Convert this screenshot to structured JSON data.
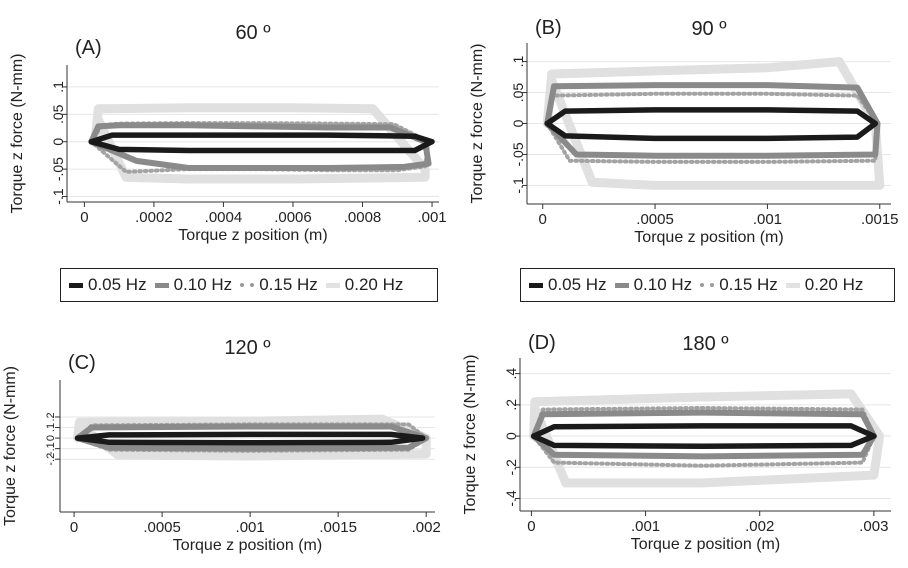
{
  "legend": {
    "items": [
      {
        "label": "0.05 Hz",
        "color": "#1a1a1a",
        "style": "solid"
      },
      {
        "label": "0.10 Hz",
        "color": "#8a8a8a",
        "style": "solid"
      },
      {
        "label": "0.15 Hz",
        "color": "#a6a6a6",
        "style": "dotted"
      },
      {
        "label": "0.20 Hz",
        "color": "#e2e2e2",
        "style": "solid"
      }
    ]
  },
  "chart_data": [
    {
      "type": "line",
      "panel_label": "(A)",
      "title": "60 º",
      "xlabel": "Torque z position (m)",
      "ylabel": "Torque z force (N-mm)",
      "xlim": [
        -5e-05,
        0.00102
      ],
      "ylim": [
        -0.11,
        0.14
      ],
      "xticks": [
        0,
        0.0002,
        0.0004,
        0.0006,
        0.0008,
        0.001
      ],
      "xtick_labels": [
        "0",
        ".0002",
        ".0004",
        ".0006",
        ".0008",
        ".001"
      ],
      "yticks": [
        -0.1,
        -0.05,
        0,
        0.05,
        0.1
      ],
      "ytick_labels": [
        "-.1",
        "-.05",
        "0",
        ".05",
        ".1"
      ],
      "grid": true,
      "series": [
        {
          "name": "0.05 Hz",
          "x": [
            2e-05,
            8e-05,
            0.0003,
            0.0005,
            0.0007,
            0.00095,
            0.001,
            0.00095,
            0.0007,
            0.0005,
            0.0003,
            0.0001,
            2e-05
          ],
          "y": [
            0.0,
            0.012,
            0.012,
            0.012,
            0.012,
            0.01,
            0.0,
            -0.016,
            -0.016,
            -0.016,
            -0.016,
            -0.014,
            0.0
          ]
        },
        {
          "name": "0.10 Hz",
          "x": [
            2e-05,
            4e-05,
            0.0001,
            0.0003,
            0.0005,
            0.0007,
            0.00088,
            0.00098,
            0.00099,
            0.00092,
            0.0007,
            0.0005,
            0.0003,
            0.00015,
            2e-05
          ],
          "y": [
            0.0,
            0.028,
            0.03,
            0.03,
            0.028,
            0.026,
            0.026,
            0.0,
            -0.04,
            -0.046,
            -0.048,
            -0.048,
            -0.048,
            -0.035,
            0.0
          ]
        },
        {
          "name": "0.15 Hz",
          "x": [
            2e-05,
            5e-05,
            0.0001,
            0.0003,
            0.0005,
            0.0007,
            0.00089,
            0.00099,
            0.00098,
            0.0009,
            0.0007,
            0.0005,
            0.0003,
            0.00012,
            2e-05
          ],
          "y": [
            0.0,
            0.03,
            0.033,
            0.034,
            0.034,
            0.033,
            0.032,
            0.0,
            -0.045,
            -0.052,
            -0.052,
            -0.05,
            -0.05,
            -0.055,
            0.0
          ]
        },
        {
          "name": "0.20 Hz",
          "x": [
            3e-05,
            4e-05,
            0.0003,
            0.0006,
            0.00083,
            0.00098,
            0.00098,
            0.0006,
            0.0003,
            0.00012,
            4e-05,
            3e-05
          ],
          "y": [
            0.0,
            0.06,
            0.062,
            0.062,
            0.06,
            -0.05,
            -0.065,
            -0.068,
            -0.068,
            -0.065,
            0.04,
            0.0
          ]
        }
      ]
    },
    {
      "type": "line",
      "panel_label": "(B)",
      "title": "90 º",
      "xlabel": "Torque z position (m)",
      "ylabel": "Torque z force (N-mm)",
      "xlim": [
        -7e-05,
        0.00155
      ],
      "ylim": [
        -0.13,
        0.13
      ],
      "xticks": [
        0,
        0.0005,
        0.001,
        0.0015
      ],
      "xtick_labels": [
        "0",
        ".0005",
        ".001",
        ".0015"
      ],
      "yticks": [
        -0.1,
        -0.05,
        0,
        0.05,
        0.1
      ],
      "ytick_labels": [
        "-.1",
        "-.05",
        "0",
        ".05",
        ".1"
      ],
      "grid": true,
      "series": [
        {
          "name": "0.05 Hz",
          "x": [
            2e-05,
            0.0001,
            0.0005,
            0.001,
            0.0014,
            0.00148,
            0.0014,
            0.001,
            0.0005,
            0.0001,
            2e-05
          ],
          "y": [
            0.0,
            0.02,
            0.022,
            0.022,
            0.02,
            0.0,
            -0.022,
            -0.024,
            -0.024,
            -0.02,
            0.0
          ]
        },
        {
          "name": "0.10 Hz",
          "x": [
            2e-05,
            5e-05,
            0.0005,
            0.001,
            0.0014,
            0.00149,
            0.00148,
            0.001,
            0.0005,
            0.00015,
            2e-05
          ],
          "y": [
            0.0,
            0.06,
            0.062,
            0.062,
            0.058,
            0.0,
            -0.05,
            -0.052,
            -0.052,
            -0.05,
            0.0
          ]
        },
        {
          "name": "0.15 Hz",
          "x": [
            2e-05,
            4e-05,
            0.0005,
            0.001,
            0.0014,
            0.00149,
            0.00148,
            0.001,
            0.0005,
            0.00012,
            2e-05
          ],
          "y": [
            0.0,
            0.045,
            0.048,
            0.048,
            0.045,
            0.0,
            -0.06,
            -0.062,
            -0.062,
            -0.06,
            0.0
          ]
        },
        {
          "name": "0.20 Hz",
          "x": [
            2e-05,
            4e-05,
            0.0005,
            0.001,
            0.00132,
            0.00148,
            0.0015,
            0.001,
            0.0005,
            0.00022,
            4e-05,
            2e-05
          ],
          "y": [
            0.0,
            0.08,
            0.085,
            0.09,
            0.1,
            0.0,
            -0.1,
            -0.1,
            -0.1,
            -0.095,
            0.07,
            0.0
          ]
        }
      ]
    },
    {
      "type": "line",
      "panel_label": "(C)",
      "title": "120 º",
      "xlabel": "Torque z position (m)",
      "ylabel": "Torque z force (N-mm)",
      "xlim": [
        -8e-05,
        0.00205
      ],
      "ylim": [
        -0.7,
        0.55
      ],
      "xticks": [
        0,
        0.0005,
        0.001,
        0.0015,
        0.002
      ],
      "xtick_labels": [
        "0",
        ".0005",
        ".001",
        ".0015",
        ".002"
      ],
      "yticks": [
        -0.2,
        -0.1,
        0,
        0.1,
        0.2
      ],
      "ytick_labels": [
        "-.2",
        "-.1",
        "0",
        ".1",
        ".2"
      ],
      "grid": true,
      "series": [
        {
          "name": "0.05 Hz",
          "x": [
            2e-05,
            0.0002,
            0.001,
            0.0018,
            0.00198,
            0.0018,
            0.001,
            0.0002,
            2e-05
          ],
          "y": [
            0.0,
            0.03,
            0.035,
            0.035,
            0.0,
            -0.04,
            -0.045,
            -0.04,
            0.0
          ]
        },
        {
          "name": "0.10 Hz",
          "x": [
            2e-05,
            0.0001,
            0.001,
            0.0018,
            0.002,
            0.0019,
            0.001,
            0.0002,
            2e-05
          ],
          "y": [
            0.0,
            0.1,
            0.11,
            0.11,
            0.0,
            -0.09,
            -0.1,
            -0.09,
            0.0
          ]
        },
        {
          "name": "0.15 Hz",
          "x": [
            2e-05,
            0.0001,
            0.001,
            0.0019,
            0.002,
            0.0019,
            0.001,
            0.0002,
            2e-05
          ],
          "y": [
            0.0,
            0.12,
            0.13,
            0.13,
            0.0,
            -0.11,
            -0.12,
            -0.11,
            0.0
          ]
        },
        {
          "name": "0.20 Hz",
          "x": [
            2e-05,
            3e-05,
            0.001,
            0.00175,
            0.002,
            0.002,
            0.001,
            0.00025,
            3e-05,
            2e-05
          ],
          "y": [
            0.0,
            0.15,
            0.16,
            0.18,
            0.0,
            -0.15,
            -0.17,
            -0.16,
            0.12,
            0.0
          ]
        }
      ]
    },
    {
      "type": "line",
      "panel_label": "(D)",
      "title": "180 º",
      "xlabel": "Torque z position (m)",
      "ylabel": "Torque z force (N-mm)",
      "xlim": [
        -0.0001,
        0.00315
      ],
      "ylim": [
        -0.48,
        0.5
      ],
      "xticks": [
        0,
        0.001,
        0.002,
        0.003
      ],
      "xtick_labels": [
        "0",
        ".001",
        ".002",
        ".003"
      ],
      "yticks": [
        -0.4,
        -0.2,
        0,
        0.2,
        0.4
      ],
      "ytick_labels": [
        "-.4",
        "-.2",
        "0",
        ".2",
        ".4"
      ],
      "grid": true,
      "series": [
        {
          "name": "0.05 Hz",
          "x": [
            2e-05,
            0.0002,
            0.0015,
            0.0028,
            0.003,
            0.0028,
            0.0015,
            0.0002,
            2e-05
          ],
          "y": [
            0.0,
            0.06,
            0.065,
            0.065,
            0.0,
            -0.06,
            -0.065,
            -0.06,
            0.0
          ]
        },
        {
          "name": "0.10 Hz",
          "x": [
            2e-05,
            0.0001,
            0.0015,
            0.0029,
            0.003,
            0.0029,
            0.0015,
            0.0002,
            2e-05
          ],
          "y": [
            0.0,
            0.14,
            0.15,
            0.14,
            0.0,
            -0.12,
            -0.13,
            -0.12,
            0.0
          ]
        },
        {
          "name": "0.15 Hz",
          "x": [
            2e-05,
            0.0001,
            0.0015,
            0.0029,
            0.003,
            0.0029,
            0.0015,
            0.0002,
            2e-05
          ],
          "y": [
            0.0,
            0.17,
            0.18,
            0.17,
            0.0,
            -0.17,
            -0.19,
            -0.17,
            0.0
          ]
        },
        {
          "name": "0.20 Hz",
          "x": [
            2e-05,
            3e-05,
            0.0015,
            0.0028,
            0.00305,
            0.003,
            0.0015,
            0.0003,
            3e-05,
            2e-05
          ],
          "y": [
            0.0,
            0.22,
            0.25,
            0.27,
            0.0,
            -0.25,
            -0.3,
            -0.3,
            0.18,
            0.0
          ]
        }
      ]
    }
  ]
}
